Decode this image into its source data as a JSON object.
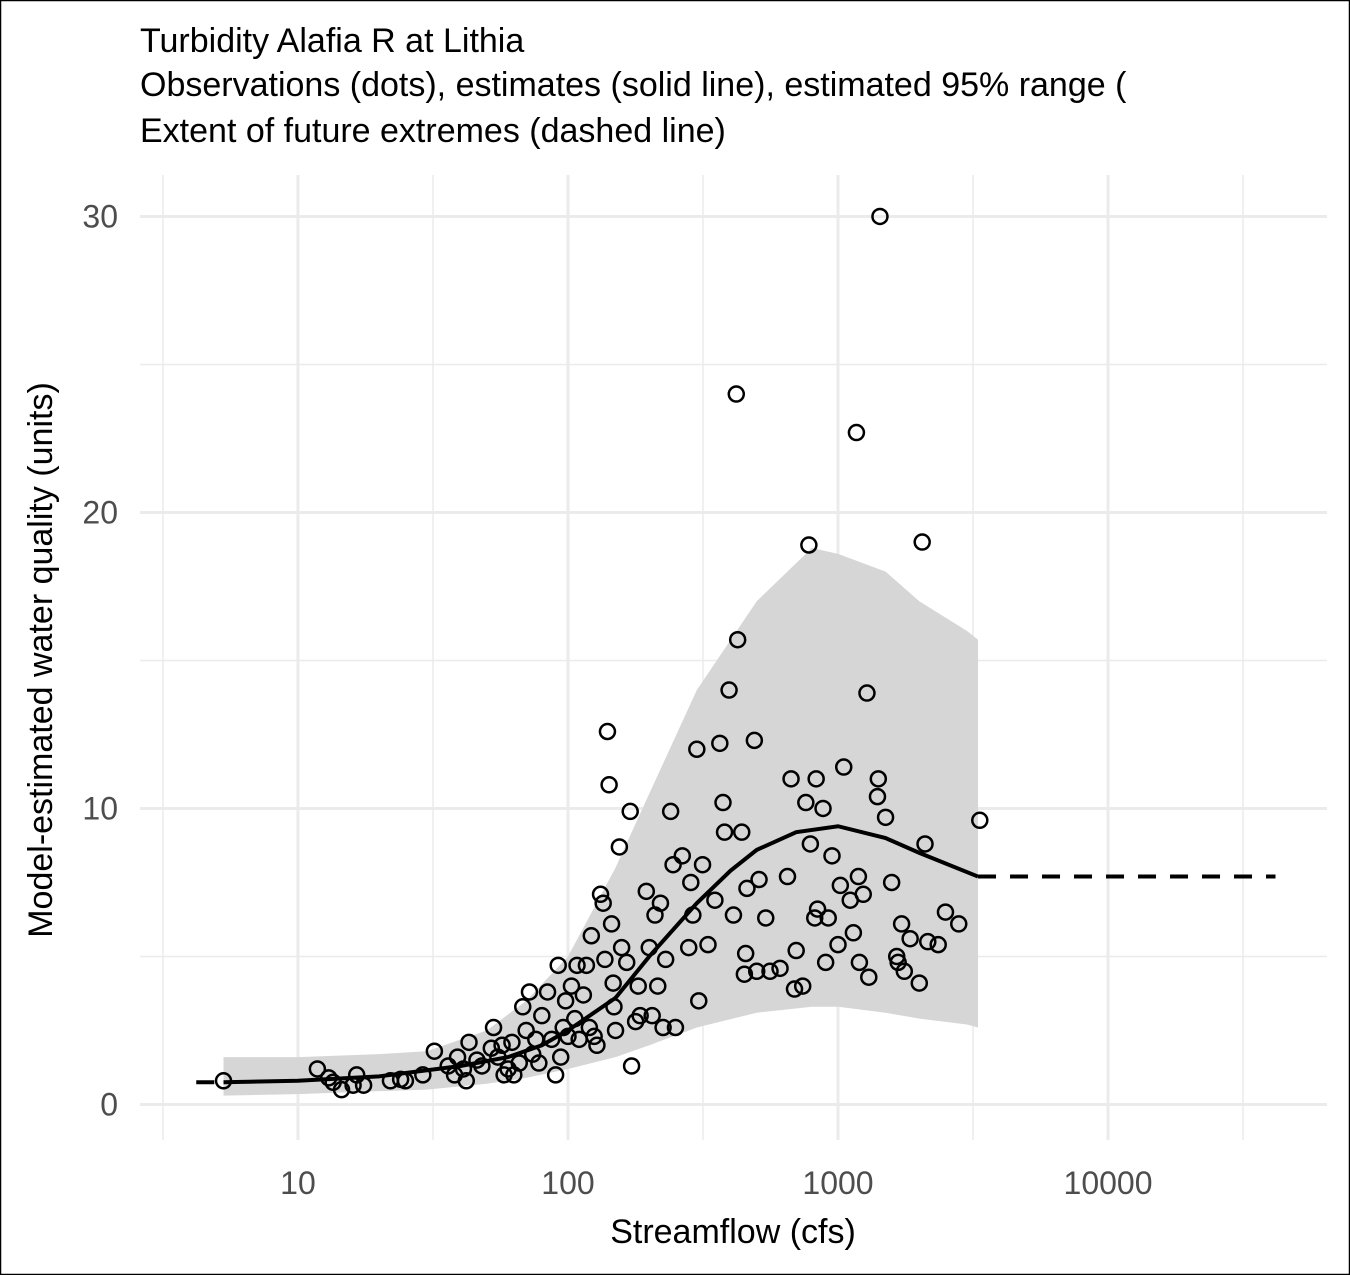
{
  "chart_data": {
    "type": "scatter",
    "title": "Turbidity Alafia R at Lithia",
    "subtitle": [
      "Observations (dots), estimates (solid line), estimated 95% range (",
      "Extent of future extremes (dashed line)"
    ],
    "x_label": "Streamflow (cfs)",
    "y_label": "Model-estimated water quality (units)",
    "x_log": true,
    "grid": true,
    "xlim": [
      2.6,
      64700
    ],
    "ylim": [
      -1.2,
      31.4
    ],
    "xticks": [
      10,
      100,
      1000,
      10000
    ],
    "yticks": [
      0,
      10,
      20,
      30
    ],
    "band": {
      "color": "#d6d6d6",
      "x": [
        5.3,
        10,
        20,
        30,
        50,
        70,
        100,
        150,
        200,
        300,
        500,
        800,
        1000,
        1500,
        2000,
        3000,
        3300
      ],
      "lower": [
        0.3,
        0.35,
        0.45,
        0.5,
        0.7,
        0.9,
        1.2,
        1.6,
        2.0,
        2.6,
        3.1,
        3.3,
        3.3,
        3.1,
        2.9,
        2.7,
        2.6
      ],
      "upper": [
        1.6,
        1.6,
        1.7,
        1.8,
        2.5,
        3.5,
        5.0,
        8.0,
        10.5,
        14.0,
        17.0,
        18.8,
        18.6,
        18.0,
        17.0,
        16.0,
        15.7
      ]
    },
    "estimate": {
      "color": "#000000",
      "x": [
        5.3,
        10,
        20,
        40,
        60,
        80,
        100,
        150,
        200,
        300,
        400,
        500,
        700,
        1000,
        1500,
        2000,
        3300
      ],
      "values": [
        0.75,
        0.8,
        0.95,
        1.3,
        1.6,
        2.0,
        2.5,
        3.6,
        5.0,
        6.8,
        7.9,
        8.6,
        9.2,
        9.4,
        9.0,
        8.5,
        7.7
      ]
    },
    "extremes": {
      "color": "#000000",
      "dashed": true,
      "x": [
        4.2,
        5.3,
        null,
        3300,
        41700
      ],
      "values": [
        0.75,
        0.75,
        null,
        7.7,
        7.7
      ]
    },
    "observations": {
      "color": "#000000",
      "x": [
        5.3,
        11.8,
        13,
        13.5,
        14.5,
        16,
        16.5,
        17.5,
        22,
        24,
        25,
        29,
        32,
        36,
        38,
        39,
        41,
        42,
        43,
        46,
        48,
        52,
        53,
        55,
        57,
        58,
        60,
        62,
        63,
        66,
        68,
        70,
        72,
        74,
        76,
        78,
        80,
        84,
        87,
        90,
        92,
        94,
        96,
        98,
        100,
        103,
        106,
        108,
        110,
        114,
        117,
        120,
        122,
        125,
        128,
        132,
        135,
        137,
        140,
        142,
        145,
        147,
        148,
        150,
        155,
        158,
        165,
        170,
        172,
        178,
        182,
        185,
        195,
        200,
        205,
        210,
        215,
        220,
        225,
        230,
        240,
        245,
        250,
        265,
        280,
        285,
        290,
        300,
        305,
        315,
        330,
        350,
        365,
        375,
        380,
        395,
        410,
        420,
        425,
        440,
        450,
        455,
        460,
        490,
        500,
        510,
        540,
        560,
        610,
        650,
        670,
        690,
        700,
        740,
        760,
        780,
        790,
        820,
        830,
        840,
        880,
        900,
        920,
        950,
        1000,
        1020,
        1050,
        1110,
        1140,
        1170,
        1190,
        1200,
        1240,
        1280,
        1300,
        1400,
        1410,
        1430,
        1500,
        1580,
        1650,
        1670,
        1720,
        1760,
        1850,
        2000,
        2050,
        2100,
        2150,
        2350,
        2500,
        2800,
        3350
      ],
      "values": [
        0.8,
        1.2,
        0.9,
        0.75,
        0.5,
        0.65,
        1.0,
        0.65,
        0.8,
        0.85,
        0.8,
        1.0,
        1.8,
        1.3,
        1.0,
        1.6,
        1.2,
        0.8,
        2.1,
        1.5,
        1.3,
        1.9,
        2.6,
        1.6,
        2.0,
        1.0,
        1.2,
        2.1,
        1.0,
        1.4,
        3.3,
        2.5,
        3.8,
        1.7,
        2.2,
        1.4,
        3.0,
        3.8,
        2.2,
        1.0,
        4.7,
        1.6,
        2.6,
        3.5,
        2.3,
        4.0,
        2.9,
        4.7,
        2.2,
        3.7,
        4.7,
        2.6,
        5.7,
        2.3,
        2.0,
        7.1,
        6.8,
        4.9,
        12.6,
        10.8,
        6.1,
        4.1,
        3.3,
        2.5,
        8.7,
        5.3,
        4.8,
        9.9,
        1.3,
        2.8,
        4.0,
        3.0,
        7.2,
        5.3,
        3.0,
        6.4,
        4.0,
        6.8,
        2.6,
        4.9,
        9.9,
        8.1,
        2.6,
        8.4,
        5.3,
        7.5,
        6.4,
        12.0,
        3.5,
        8.1,
        5.4,
        6.9,
        12.2,
        10.2,
        9.2,
        14.0,
        6.4,
        24.0,
        15.7,
        9.2,
        4.4,
        5.1,
        7.3,
        12.3,
        4.5,
        7.6,
        6.3,
        4.5,
        4.6,
        7.7,
        11.0,
        3.9,
        5.2,
        4.0,
        10.2,
        18.9,
        8.8,
        6.3,
        11.0,
        6.6,
        10.0,
        4.8,
        6.3,
        8.4,
        5.4,
        7.4,
        11.4,
        6.9,
        5.8,
        22.7,
        7.7,
        4.8,
        7.1,
        13.9,
        4.3,
        10.4,
        11.0,
        30.0,
        9.7,
        7.5,
        5.0,
        4.8,
        6.1,
        4.5,
        5.6,
        4.1,
        19.0,
        8.8,
        5.5,
        5.4,
        6.5,
        6.1,
        9.6
      ]
    }
  }
}
